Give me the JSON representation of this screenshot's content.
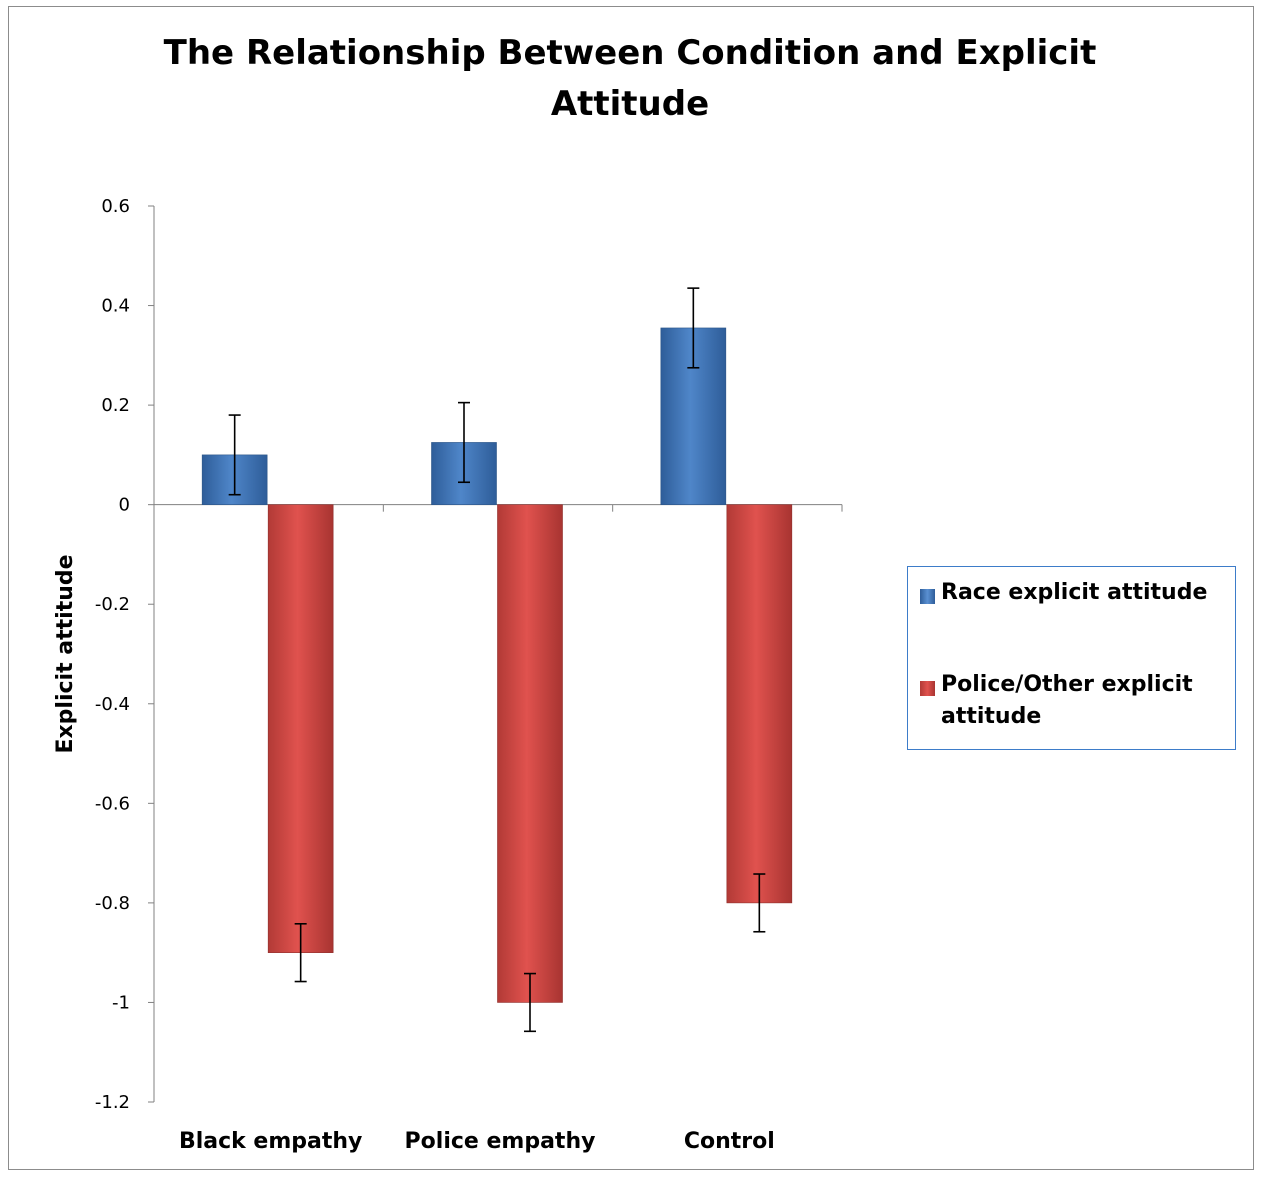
{
  "chart_data": {
    "type": "bar",
    "title": "The Relationship  Between Condition  and  Explicit Attitude",
    "xlabel": "",
    "ylabel": "Explicit attitude",
    "ylim": [
      -1.2,
      0.6
    ],
    "yticks": [
      0.6,
      0.4,
      0.2,
      0,
      -0.2,
      -0.4,
      -0.6,
      -0.8,
      -1,
      -1.2
    ],
    "ytick_labels": [
      "0.6",
      "0.4",
      "0.2",
      "0",
      "-0.2",
      "-0.4",
      "-0.6",
      "-0.8",
      "-1",
      "-1.2"
    ],
    "categories": [
      "Black empathy",
      "Police empathy",
      "Control"
    ],
    "series": [
      {
        "name": "Race explicit attitude",
        "color": "#4f81bd",
        "values": [
          0.1,
          0.125,
          0.355
        ],
        "error": [
          0.08,
          0.08,
          0.08
        ]
      },
      {
        "name": "Police/Other explicit attitude",
        "color": "#c0504d",
        "values": [
          -0.9,
          -1.0,
          -0.8
        ],
        "error": [
          0.058,
          0.058,
          0.058
        ]
      }
    ],
    "legend_position": "right",
    "grid": false
  }
}
